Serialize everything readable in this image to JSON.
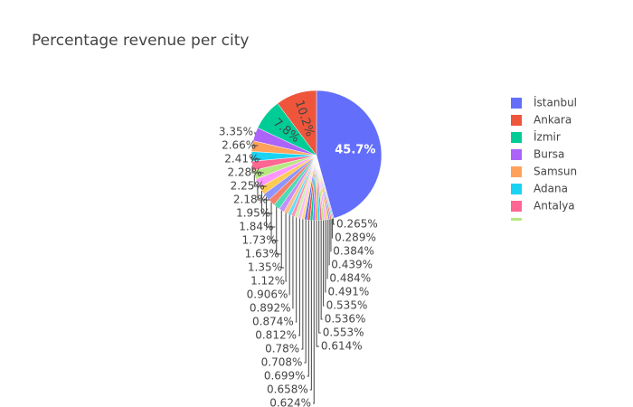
{
  "chart_data": {
    "type": "pie",
    "title": "Percentage revenue per city",
    "categories": [
      "İstanbul",
      "Ankara",
      "İzmir",
      "Bursa",
      "Samsun",
      "Adana",
      "Antalya",
      null,
      null,
      null,
      null,
      null,
      null,
      null,
      null,
      null,
      null,
      null,
      null,
      null,
      null,
      null,
      null,
      null,
      null,
      null,
      null,
      null,
      null,
      null,
      null,
      null,
      null,
      null
    ],
    "values": [
      45.7,
      10.2,
      7.8,
      3.35,
      2.66,
      2.41,
      2.28,
      2.25,
      2.18,
      1.95,
      1.84,
      1.73,
      1.63,
      1.35,
      1.12,
      0.906,
      0.892,
      0.874,
      0.812,
      0.78,
      0.708,
      0.699,
      0.658,
      0.624,
      0.614,
      0.553,
      0.536,
      0.535,
      0.491,
      0.484,
      0.439,
      0.384,
      0.289,
      0.265
    ],
    "value_labels": [
      "45.7%",
      "10.2%",
      "7.8%",
      "3.35%",
      "2.66%",
      "2.41%",
      "2.28%",
      "2.25%",
      "2.18%",
      "1.95%",
      "1.84%",
      "1.73%",
      "1.63%",
      "1.35%",
      "1.12%",
      "0.906%",
      "0.892%",
      "0.874%",
      "0.812%",
      "0.78%",
      "0.708%",
      "0.699%",
      "0.658%",
      "0.624%",
      "0.614%",
      "0.553%",
      "0.536%",
      "0.535%",
      "0.491%",
      "0.484%",
      "0.439%",
      "0.384%",
      "0.289%",
      "0.265%"
    ],
    "colors": [
      "#636efa",
      "#ef553b",
      "#00cc96",
      "#ab63fa",
      "#ffa15a",
      "#19d3f3",
      "#ff6692",
      "#b6e880",
      "#ff97ff",
      "#fecb52",
      "#8d94fb",
      "#f4806a",
      "#4ddbb2",
      "#c28ffb",
      "#ffbd8a",
      "#5ee0f6",
      "#ff93b2",
      "#cbefa9",
      "#ffb7ff",
      "#fedd88"
    ],
    "legend_position": "right"
  }
}
